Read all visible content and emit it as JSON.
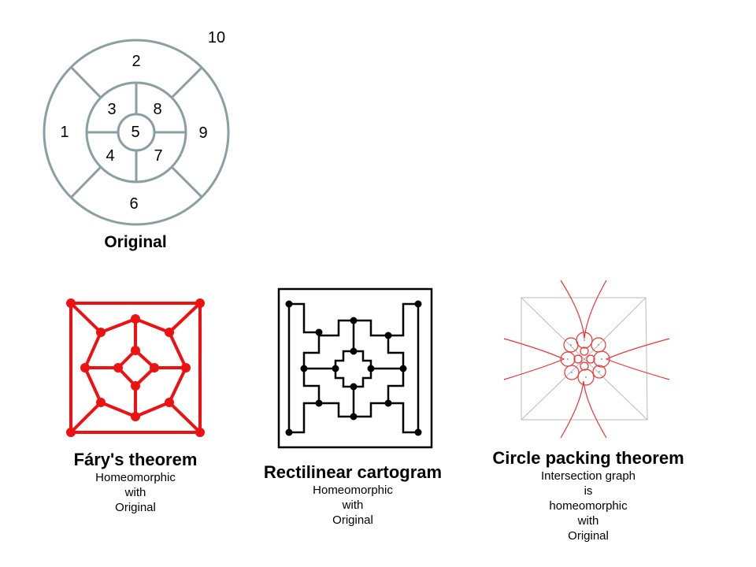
{
  "original": {
    "regions": [
      "1",
      "2",
      "3",
      "4",
      "5",
      "6",
      "7",
      "8",
      "9",
      "10"
    ],
    "caption": "Original",
    "stroke_color": "#8a9fa3"
  },
  "fary": {
    "title": "Fáry's theorem",
    "subtitle": [
      "Homeomorphic",
      "with",
      "Original"
    ],
    "color": "#ee1111"
  },
  "rectilinear": {
    "title": "Rectilinear cartogram",
    "subtitle": [
      "Homeomorphic",
      "with",
      "Original"
    ],
    "color": "#000000"
  },
  "circle_packing": {
    "title": "Circle packing theorem",
    "subtitle": [
      "Intersection graph",
      "is",
      "homeomorphic",
      "with",
      "Original"
    ],
    "color": "#ee3333",
    "frame_color": "#bbbbbb"
  }
}
